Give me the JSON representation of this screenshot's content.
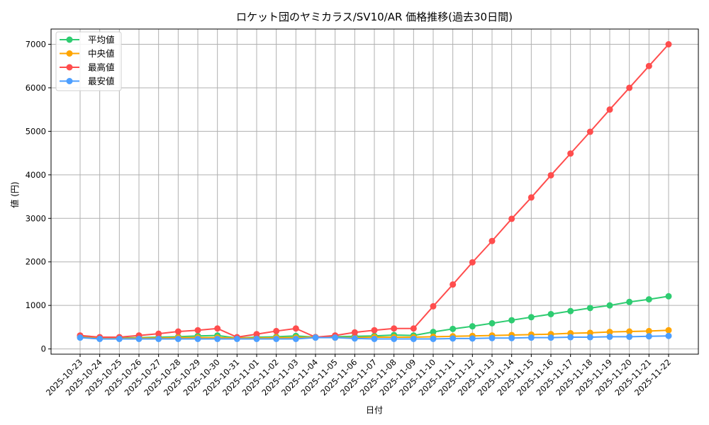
{
  "chart_data": {
    "type": "line",
    "title": "ロケット団のヤミカラス/SV10/AR 価格推移(過去30日間)",
    "xlabel": "日付",
    "ylabel": "値 (円)",
    "ylim": [
      -120,
      7350
    ],
    "yticks": [
      0,
      1000,
      2000,
      3000,
      4000,
      5000,
      6000,
      7000
    ],
    "grid": true,
    "legend_position": "upper left",
    "x": [
      "2025-10-23",
      "2025-10-24",
      "2025-10-25",
      "2025-10-26",
      "2025-10-27",
      "2025-10-28",
      "2025-10-29",
      "2025-10-30",
      "2025-10-31",
      "2025-11-01",
      "2025-11-02",
      "2025-11-03",
      "2025-11-04",
      "2025-11-05",
      "2025-11-06",
      "2025-11-07",
      "2025-11-08",
      "2025-11-09",
      "2025-11-10",
      "2025-11-11",
      "2025-11-12",
      "2025-11-13",
      "2025-11-14",
      "2025-11-15",
      "2025-11-16",
      "2025-11-17",
      "2025-11-18",
      "2025-11-19",
      "2025-11-20",
      "2025-11-21",
      "2025-11-22"
    ],
    "series": [
      {
        "name": "平均値",
        "color": "#2ecc71",
        "values": [
          280,
          250,
          250,
          260,
          270,
          280,
          300,
          310,
          250,
          270,
          280,
          300,
          270,
          280,
          290,
          300,
          320,
          310,
          390,
          460,
          520,
          590,
          660,
          730,
          800,
          870,
          940,
          1000,
          1080,
          1140,
          1210
        ]
      },
      {
        "name": "中央値",
        "color": "#ffa500",
        "values": [
          270,
          240,
          240,
          250,
          250,
          260,
          260,
          260,
          250,
          250,
          260,
          260,
          270,
          260,
          260,
          270,
          270,
          270,
          280,
          290,
          300,
          310,
          320,
          330,
          340,
          360,
          370,
          390,
          400,
          410,
          430
        ]
      },
      {
        "name": "最高値",
        "color": "#ff4d4d",
        "values": [
          310,
          270,
          270,
          310,
          350,
          400,
          430,
          470,
          270,
          340,
          410,
          470,
          270,
          310,
          380,
          430,
          470,
          470,
          980,
          1480,
          1990,
          2480,
          2990,
          3480,
          3990,
          4490,
          4990,
          5500,
          6000,
          6500,
          7000
        ]
      },
      {
        "name": "最安値",
        "color": "#4d9fff",
        "values": [
          260,
          230,
          230,
          230,
          230,
          230,
          230,
          230,
          230,
          230,
          230,
          230,
          260,
          260,
          240,
          230,
          230,
          230,
          230,
          240,
          240,
          250,
          250,
          260,
          260,
          270,
          270,
          280,
          280,
          290,
          300
        ]
      }
    ]
  }
}
